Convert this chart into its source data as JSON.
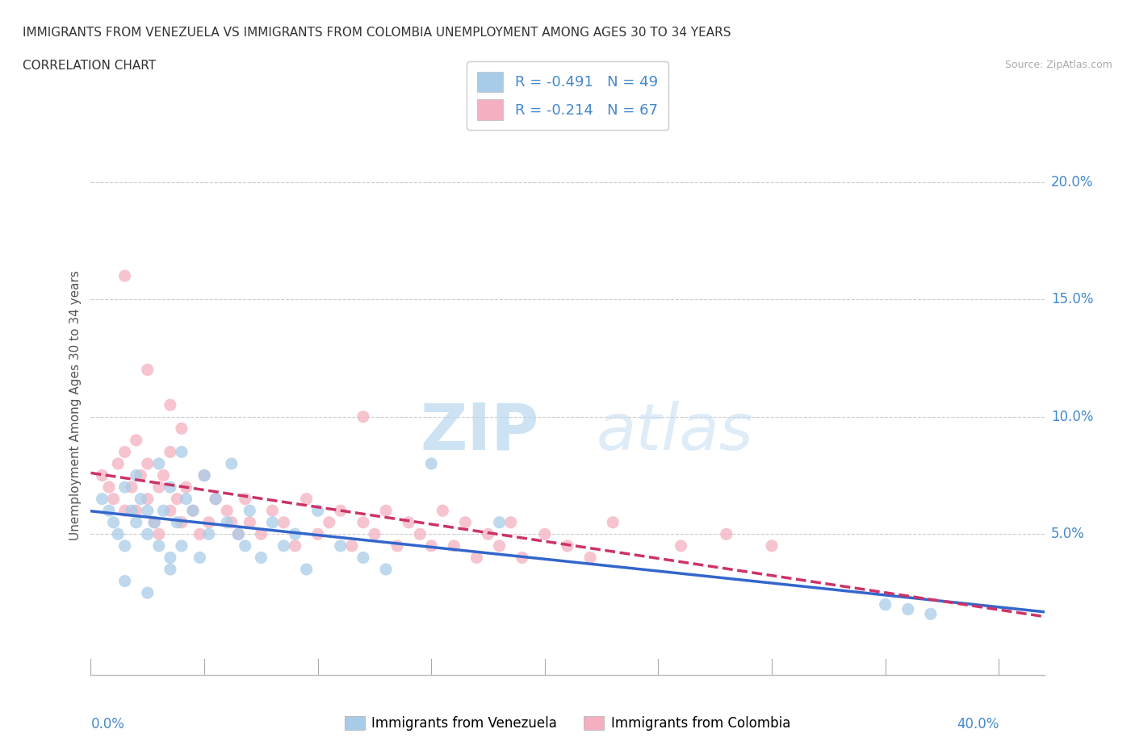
{
  "title_line1": "IMMIGRANTS FROM VENEZUELA VS IMMIGRANTS FROM COLOMBIA UNEMPLOYMENT AMONG AGES 30 TO 34 YEARS",
  "title_line2": "CORRELATION CHART",
  "source": "Source: ZipAtlas.com",
  "ylabel": "Unemployment Among Ages 30 to 34 years",
  "watermark_ZIP": "ZIP",
  "watermark_atlas": "atlas",
  "legend_venezuela": "R = -0.491   N = 49",
  "legend_colombia": "R = -0.214   N = 67",
  "color_venezuela": "#a8cce8",
  "color_colombia": "#f4b0c0",
  "line_color_venezuela": "#3366cc",
  "line_color_colombia": "#cc3366",
  "background_color": "#ffffff",
  "grid_color": "#cccccc",
  "xlim": [
    0.0,
    0.42
  ],
  "ylim": [
    -0.01,
    0.22
  ],
  "venezuela_x": [
    0.005,
    0.008,
    0.01,
    0.012,
    0.015,
    0.015,
    0.018,
    0.02,
    0.02,
    0.022,
    0.025,
    0.025,
    0.028,
    0.03,
    0.03,
    0.032,
    0.035,
    0.035,
    0.038,
    0.04,
    0.04,
    0.042,
    0.045,
    0.048,
    0.05,
    0.052,
    0.055,
    0.06,
    0.062,
    0.065,
    0.068,
    0.07,
    0.075,
    0.08,
    0.085,
    0.09,
    0.095,
    0.1,
    0.11,
    0.12,
    0.13,
    0.15,
    0.18,
    0.015,
    0.025,
    0.035,
    0.35,
    0.36,
    0.37
  ],
  "venezuela_y": [
    0.065,
    0.06,
    0.055,
    0.05,
    0.07,
    0.045,
    0.06,
    0.075,
    0.055,
    0.065,
    0.06,
    0.05,
    0.055,
    0.08,
    0.045,
    0.06,
    0.07,
    0.04,
    0.055,
    0.085,
    0.045,
    0.065,
    0.06,
    0.04,
    0.075,
    0.05,
    0.065,
    0.055,
    0.08,
    0.05,
    0.045,
    0.06,
    0.04,
    0.055,
    0.045,
    0.05,
    0.035,
    0.06,
    0.045,
    0.04,
    0.035,
    0.08,
    0.055,
    0.03,
    0.025,
    0.035,
    0.02,
    0.018,
    0.016
  ],
  "colombia_x": [
    0.005,
    0.008,
    0.01,
    0.012,
    0.015,
    0.015,
    0.018,
    0.02,
    0.02,
    0.022,
    0.025,
    0.025,
    0.028,
    0.03,
    0.03,
    0.032,
    0.035,
    0.035,
    0.038,
    0.04,
    0.04,
    0.042,
    0.045,
    0.048,
    0.05,
    0.052,
    0.055,
    0.06,
    0.062,
    0.065,
    0.068,
    0.07,
    0.075,
    0.08,
    0.085,
    0.09,
    0.095,
    0.1,
    0.105,
    0.11,
    0.115,
    0.12,
    0.125,
    0.13,
    0.135,
    0.14,
    0.145,
    0.15,
    0.155,
    0.16,
    0.165,
    0.17,
    0.175,
    0.18,
    0.185,
    0.19,
    0.2,
    0.21,
    0.22,
    0.23,
    0.015,
    0.025,
    0.035,
    0.26,
    0.28,
    0.3,
    0.12
  ],
  "colombia_y": [
    0.075,
    0.07,
    0.065,
    0.08,
    0.06,
    0.085,
    0.07,
    0.09,
    0.06,
    0.075,
    0.065,
    0.08,
    0.055,
    0.07,
    0.05,
    0.075,
    0.085,
    0.06,
    0.065,
    0.095,
    0.055,
    0.07,
    0.06,
    0.05,
    0.075,
    0.055,
    0.065,
    0.06,
    0.055,
    0.05,
    0.065,
    0.055,
    0.05,
    0.06,
    0.055,
    0.045,
    0.065,
    0.05,
    0.055,
    0.06,
    0.045,
    0.055,
    0.05,
    0.06,
    0.045,
    0.055,
    0.05,
    0.045,
    0.06,
    0.045,
    0.055,
    0.04,
    0.05,
    0.045,
    0.055,
    0.04,
    0.05,
    0.045,
    0.04,
    0.055,
    0.16,
    0.12,
    0.105,
    0.045,
    0.05,
    0.045,
    0.1
  ]
}
